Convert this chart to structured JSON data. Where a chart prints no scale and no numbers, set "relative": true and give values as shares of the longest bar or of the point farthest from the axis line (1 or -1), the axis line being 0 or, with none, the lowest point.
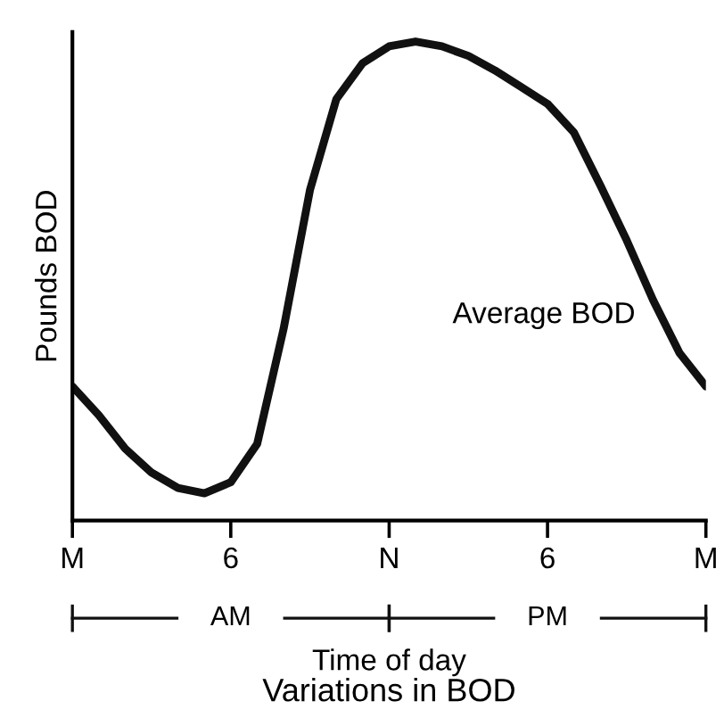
{
  "chart_data": {
    "type": "line",
    "title": "Variations in BOD",
    "xlabel": "Time of day",
    "ylabel": "Pounds BOD",
    "relative": true,
    "color": "#111111",
    "categories": [
      "M",
      null,
      null,
      null,
      null,
      null,
      "6",
      null,
      null,
      null,
      null,
      null,
      "N",
      null,
      null,
      null,
      null,
      null,
      "6",
      null,
      null,
      null,
      null,
      null,
      "M"
    ],
    "values": [
      0.28,
      0.22,
      0.15,
      0.1,
      0.068,
      0.057,
      0.08,
      0.16,
      0.4,
      0.69,
      0.88,
      0.955,
      0.99,
      1.0,
      0.99,
      0.97,
      0.94,
      0.905,
      0.87,
      0.81,
      0.7,
      0.585,
      0.46,
      0.35,
      0.28
    ],
    "annotations": [
      "Average BOD",
      "AM",
      "PM"
    ],
    "grid": false,
    "legend": false,
    "marker": "none",
    "line_style": "solid"
  }
}
